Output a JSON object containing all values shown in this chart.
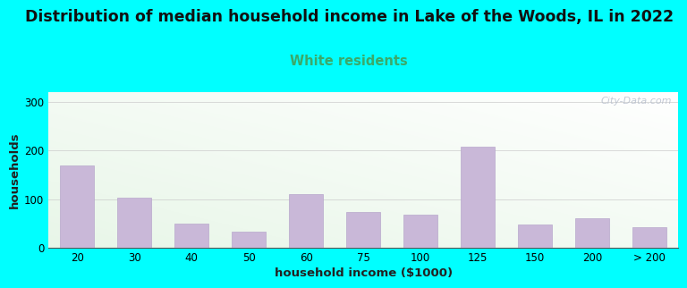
{
  "title": "Distribution of median household income in Lake of the Woods, IL in 2022",
  "subtitle": "White residents",
  "xlabel": "household income ($1000)",
  "ylabel": "households",
  "background_color": "#00FFFF",
  "bar_color": "#c9b8d8",
  "bar_edge_color": "#b8a8cc",
  "title_fontsize": 12.5,
  "subtitle_fontsize": 10.5,
  "subtitle_color": "#3aaa6a",
  "xlabel_fontsize": 9.5,
  "ylabel_fontsize": 9.5,
  "tick_fontsize": 8.5,
  "ylim": [
    0,
    320
  ],
  "yticks": [
    0,
    100,
    200,
    300
  ],
  "categories": [
    "20",
    "30",
    "40",
    "50",
    "60",
    "75",
    "100",
    "125",
    "150",
    "200",
    "> 200"
  ],
  "values": [
    170,
    103,
    50,
    33,
    110,
    73,
    68,
    208,
    47,
    60,
    42
  ],
  "watermark": "City-Data.com"
}
